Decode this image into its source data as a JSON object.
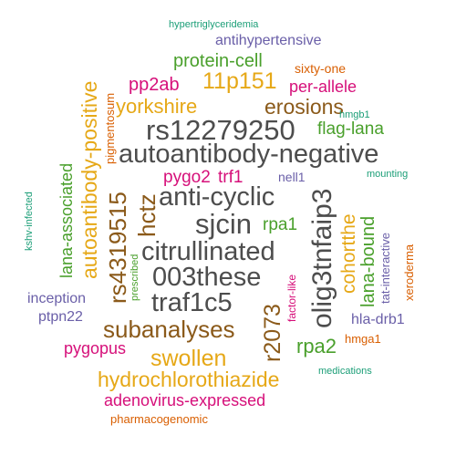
{
  "palette": {
    "gray": "#4d4d4d",
    "brown": "#8b5a1a",
    "gold": "#e6a817",
    "green": "#4aa02c",
    "teal": "#1b9e77",
    "orange": "#d95f02",
    "purple": "#6a5fa8",
    "magenta": "#d6107a"
  },
  "words": [
    {
      "id": "w01",
      "text": "hypertriglyceridemia",
      "color": "teal",
      "orientation": "horizontal"
    },
    {
      "id": "w02",
      "text": "antihypertensive",
      "color": "purple",
      "orientation": "horizontal"
    },
    {
      "id": "w03",
      "text": "protein-cell",
      "color": "green",
      "orientation": "horizontal"
    },
    {
      "id": "w04",
      "text": "sixty-one",
      "color": "orange",
      "orientation": "horizontal"
    },
    {
      "id": "w05",
      "text": "pp2ab",
      "color": "magenta",
      "orientation": "horizontal"
    },
    {
      "id": "w06",
      "text": "11p151",
      "color": "gold",
      "orientation": "horizontal"
    },
    {
      "id": "w07",
      "text": "per-allele",
      "color": "magenta",
      "orientation": "horizontal"
    },
    {
      "id": "w08",
      "text": "yorkshire",
      "color": "gold",
      "orientation": "horizontal"
    },
    {
      "id": "w09",
      "text": "erosions",
      "color": "brown",
      "orientation": "horizontal"
    },
    {
      "id": "w10",
      "text": "hmgb1",
      "color": "teal",
      "orientation": "horizontal"
    },
    {
      "id": "w11",
      "text": "rs12279250",
      "color": "gray",
      "orientation": "horizontal"
    },
    {
      "id": "w12",
      "text": "flag-lana",
      "color": "green",
      "orientation": "horizontal"
    },
    {
      "id": "w13",
      "text": "autoantibody-negative",
      "color": "gray",
      "orientation": "horizontal"
    },
    {
      "id": "w14",
      "text": "pygo2",
      "color": "magenta",
      "orientation": "horizontal"
    },
    {
      "id": "w15",
      "text": "trf1",
      "color": "magenta",
      "orientation": "horizontal"
    },
    {
      "id": "w16",
      "text": "anti-cyclic",
      "color": "gray",
      "orientation": "horizontal"
    },
    {
      "id": "w17",
      "text": "nell1",
      "color": "purple",
      "orientation": "horizontal"
    },
    {
      "id": "w18",
      "text": "mounting",
      "color": "teal",
      "orientation": "horizontal"
    },
    {
      "id": "w19",
      "text": "sjcin",
      "color": "gray",
      "orientation": "horizontal"
    },
    {
      "id": "w20",
      "text": "rpa1",
      "color": "green",
      "orientation": "horizontal"
    },
    {
      "id": "w21",
      "text": "citrullinated",
      "color": "gray",
      "orientation": "horizontal"
    },
    {
      "id": "w22",
      "text": "003these",
      "color": "gray",
      "orientation": "horizontal"
    },
    {
      "id": "w23",
      "text": "traf1c5",
      "color": "gray",
      "orientation": "horizontal"
    },
    {
      "id": "w24",
      "text": "inception",
      "color": "purple",
      "orientation": "horizontal"
    },
    {
      "id": "w25",
      "text": "ptpn22",
      "color": "purple",
      "orientation": "horizontal"
    },
    {
      "id": "w26",
      "text": "subanalyses",
      "color": "brown",
      "orientation": "horizontal"
    },
    {
      "id": "w27",
      "text": "hla-drb1",
      "color": "purple",
      "orientation": "horizontal"
    },
    {
      "id": "w28",
      "text": "hmga1",
      "color": "orange",
      "orientation": "horizontal"
    },
    {
      "id": "w29",
      "text": "pygopus",
      "color": "magenta",
      "orientation": "horizontal"
    },
    {
      "id": "w30",
      "text": "swollen",
      "color": "gold",
      "orientation": "horizontal"
    },
    {
      "id": "w31",
      "text": "rpa2",
      "color": "green",
      "orientation": "horizontal"
    },
    {
      "id": "w32",
      "text": "hydrochlorothiazide",
      "color": "gold",
      "orientation": "horizontal"
    },
    {
      "id": "w33",
      "text": "medications",
      "color": "teal",
      "orientation": "horizontal"
    },
    {
      "id": "w34",
      "text": "adenovirus-expressed",
      "color": "magenta",
      "orientation": "horizontal"
    },
    {
      "id": "w35",
      "text": "pharmacogenomic",
      "color": "orange",
      "orientation": "horizontal"
    },
    {
      "id": "w36",
      "text": "autoantibody-positive",
      "color": "gold",
      "orientation": "vertical"
    },
    {
      "id": "w37",
      "text": "pigmentosum",
      "color": "orange",
      "orientation": "vertical"
    },
    {
      "id": "w38",
      "text": "lana-associated",
      "color": "green",
      "orientation": "vertical"
    },
    {
      "id": "w39",
      "text": "kshv-infected",
      "color": "teal",
      "orientation": "vertical"
    },
    {
      "id": "w40",
      "text": "rs4319515",
      "color": "brown",
      "orientation": "vertical"
    },
    {
      "id": "w41",
      "text": "hctz",
      "color": "brown",
      "orientation": "vertical"
    },
    {
      "id": "w42",
      "text": "prescribed",
      "color": "green",
      "orientation": "vertical"
    },
    {
      "id": "w43",
      "text": "olig3tnfaip3",
      "color": "gray",
      "orientation": "vertical"
    },
    {
      "id": "w44",
      "text": "cohortthe",
      "color": "gold",
      "orientation": "vertical"
    },
    {
      "id": "w45",
      "text": "lana-bound",
      "color": "green",
      "orientation": "vertical"
    },
    {
      "id": "w46",
      "text": "tat-interactive",
      "color": "purple",
      "orientation": "vertical"
    },
    {
      "id": "w47",
      "text": "xeroderma",
      "color": "orange",
      "orientation": "vertical"
    },
    {
      "id": "w48",
      "text": "r2073",
      "color": "brown",
      "orientation": "vertical"
    },
    {
      "id": "w49",
      "text": "factor-like",
      "color": "magenta",
      "orientation": "vertical"
    }
  ]
}
